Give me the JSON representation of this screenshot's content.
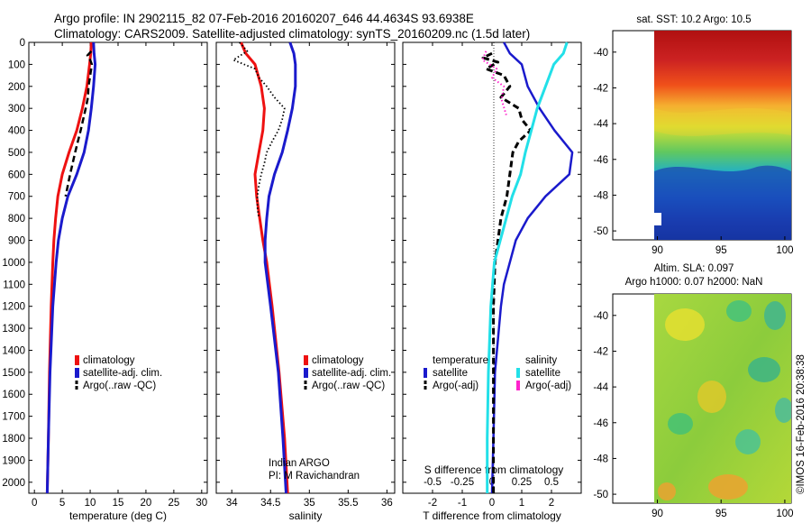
{
  "header": {
    "line1": "Argo profile: IN 2902115_82 07-Feb-2016 20160207_646 44.4634S 93.6938E",
    "line2": "Climatology: CARS2009. Satellite-adjusted climatology: synTS_20160209.nc (1.5d later)"
  },
  "colors": {
    "climatology": "#ee1111",
    "satellite": "#1a1acc",
    "argo": "#000000",
    "salinity_satellite": "#22e0e8",
    "salinity_argo": "#ff22cc"
  },
  "chart_data": [
    {
      "type": "line",
      "name": "temperature",
      "xlabel": "temperature (deg C)",
      "ylabel": "",
      "xlim": [
        -1,
        31
      ],
      "ylim": [
        2050,
        0
      ],
      "xticks": [
        "0",
        "5",
        "10",
        "15",
        "20",
        "25",
        "30"
      ],
      "yticks": [
        "0",
        "100",
        "200",
        "300",
        "400",
        "500",
        "600",
        "700",
        "800",
        "900",
        "1000",
        "1100",
        "1200",
        "1300",
        "1400",
        "1500",
        "1600",
        "1700",
        "1800",
        "1900",
        "2000"
      ],
      "legend": [
        "climatology",
        "satellite-adj. clim.",
        "Argo(..raw -QC)"
      ],
      "series": [
        {
          "name": "climatology",
          "style": "solid",
          "color": "#ee1111",
          "depth": [
            0,
            50,
            100,
            200,
            300,
            400,
            500,
            600,
            700,
            800,
            900,
            1000,
            1200,
            1500,
            1800,
            2050
          ],
          "values": [
            10.2,
            10.1,
            9.9,
            9.4,
            8.6,
            7.6,
            6.2,
            5.0,
            4.2,
            3.8,
            3.5,
            3.3,
            3.0,
            2.7,
            2.5,
            2.3
          ]
        },
        {
          "name": "satellite-adj. clim.",
          "style": "solid",
          "color": "#1a1acc",
          "depth": [
            0,
            50,
            100,
            200,
            300,
            400,
            500,
            600,
            700,
            800,
            900,
            1000,
            1200,
            1500,
            1800,
            2050
          ],
          "values": [
            10.6,
            10.7,
            10.9,
            10.6,
            10.2,
            9.7,
            8.9,
            7.6,
            6.0,
            5.0,
            4.3,
            3.9,
            3.3,
            2.8,
            2.5,
            2.3
          ]
        },
        {
          "name": "Argo(..raw -QC)",
          "style": "dashed",
          "color": "#000000",
          "depth": [
            40,
            60,
            80,
            100,
            150,
            200,
            250,
            300,
            400,
            500,
            600,
            700
          ],
          "values": [
            10.2,
            9.5,
            10.0,
            10.3,
            10.0,
            9.7,
            9.6,
            9.2,
            8.3,
            7.3,
            6.4,
            5.6
          ]
        }
      ]
    },
    {
      "type": "line",
      "name": "salinity",
      "xlabel": "salinity",
      "ylabel": "",
      "xlim": [
        33.8,
        36.1
      ],
      "ylim": [
        2050,
        0
      ],
      "xticks": [
        "34",
        "34.5",
        "35",
        "35.5",
        "36"
      ],
      "legend": [
        "climatology",
        "satellite-adj. clim.",
        "Argo(..raw -QC)"
      ],
      "annotations": [
        "Indian ARGO",
        "PI: M Ravichandran"
      ],
      "series": [
        {
          "name": "climatology",
          "style": "solid",
          "color": "#ee1111",
          "depth": [
            0,
            50,
            100,
            200,
            300,
            400,
            500,
            600,
            700,
            800,
            900,
            1000,
            1200,
            1500,
            1800,
            2050
          ],
          "values": [
            34.12,
            34.18,
            34.3,
            34.38,
            34.42,
            34.4,
            34.35,
            34.3,
            34.32,
            34.36,
            34.4,
            34.45,
            34.52,
            34.61,
            34.68,
            34.72
          ]
        },
        {
          "name": "satellite-adj. clim.",
          "style": "solid",
          "color": "#1a1acc",
          "depth": [
            0,
            50,
            100,
            200,
            300,
            400,
            500,
            600,
            700,
            800,
            900,
            1000,
            1200,
            1500,
            1800,
            2050
          ],
          "values": [
            34.75,
            34.8,
            34.82,
            34.82,
            34.78,
            34.72,
            34.65,
            34.55,
            34.48,
            34.45,
            34.43,
            34.43,
            34.5,
            34.6,
            34.66,
            34.7
          ]
        },
        {
          "name": "Argo(..raw -QC)",
          "style": "dotted",
          "color": "#000000",
          "depth": [
            0,
            40,
            80,
            120,
            160,
            200,
            250,
            300,
            350,
            400,
            450,
            500,
            550,
            600,
            650,
            700,
            750,
            800
          ],
          "values": [
            34.1,
            34.2,
            34.02,
            34.3,
            34.35,
            34.45,
            34.55,
            34.68,
            34.65,
            34.6,
            34.52,
            34.45,
            34.42,
            34.38,
            34.35,
            34.33,
            34.33,
            34.35
          ]
        }
      ]
    },
    {
      "type": "line",
      "name": "difference",
      "xlabel": "T difference from climatology",
      "top_axis_label": "S difference from climatology",
      "xlim": [
        -3,
        3
      ],
      "ylim": [
        2050,
        0
      ],
      "xticks": [
        "-2",
        "-1",
        "0",
        "1",
        "2"
      ],
      "top_xticks": [
        "-0.5",
        "-0.25",
        "0",
        "0.25",
        "0.5"
      ],
      "legend": [
        "temperature",
        "satellite",
        "Argo(-adj)",
        "salinity",
        "satellite",
        "Argo(-adj)"
      ],
      "series": [
        {
          "name": "temperature satellite",
          "style": "solid",
          "color": "#1a1acc",
          "depth": [
            0,
            50,
            100,
            200,
            300,
            400,
            500,
            600,
            700,
            800,
            900,
            1000,
            1100,
            1200,
            1500,
            1800,
            2050
          ],
          "values": [
            0.4,
            0.6,
            1.0,
            1.2,
            1.6,
            2.1,
            2.7,
            2.6,
            1.8,
            1.2,
            0.8,
            0.6,
            0.4,
            0.3,
            0.1,
            0.05,
            0.0
          ]
        },
        {
          "name": "temperature Argo(-adj)",
          "style": "dashed",
          "color": "#000000",
          "depth": [
            50,
            70,
            90,
            120,
            150,
            200,
            250,
            300,
            350,
            400,
            450,
            500,
            600,
            700,
            800,
            900,
            1000,
            1200,
            1500,
            1800,
            2050
          ],
          "values": [
            0.0,
            -0.3,
            0.2,
            -0.2,
            0.4,
            0.6,
            0.3,
            0.9,
            1.0,
            1.3,
            0.9,
            0.7,
            0.6,
            0.5,
            0.3,
            0.2,
            0.1,
            0.05,
            0.05,
            0.05,
            0.05
          ]
        },
        {
          "name": "salinity satellite",
          "style": "solid",
          "color": "#22e0e8",
          "depth": [
            0,
            50,
            100,
            200,
            300,
            400,
            500,
            600,
            700,
            800,
            900,
            1000,
            1200,
            1500,
            1800,
            2050
          ],
          "values": [
            0.63,
            0.6,
            0.52,
            0.45,
            0.38,
            0.33,
            0.28,
            0.24,
            0.17,
            0.12,
            0.07,
            0.02,
            -0.01,
            -0.03,
            -0.04,
            -0.04
          ]
        },
        {
          "name": "salinity Argo(-adj)",
          "style": "dotted",
          "color": "#ff22cc",
          "depth": [
            40,
            80,
            120,
            160,
            200,
            260,
            330
          ],
          "values": [
            -0.05,
            -0.08,
            0.04,
            0.0,
            0.1,
            0.08,
            0.12
          ]
        }
      ]
    },
    {
      "type": "heatmap",
      "name": "sst-map",
      "title": "sat. SST: 10.2 Argo: 10.5",
      "xticks": [
        "90",
        "95",
        "100"
      ],
      "yticks": [
        "-40",
        "-42",
        "-44",
        "-46",
        "-48",
        "-50"
      ],
      "xlim": [
        86.5,
        100.5
      ],
      "ylim": [
        -50.5,
        -38.8
      ]
    },
    {
      "type": "heatmap",
      "name": "sla-map",
      "title": "Altim. SLA: 0.097",
      "subtitle": "Argo h1000: 0.07 h2000: NaN",
      "xticks": [
        "90",
        "95",
        "100"
      ],
      "yticks": [
        "-40",
        "-42",
        "-44",
        "-46",
        "-48",
        "-50"
      ],
      "xlim": [
        86.5,
        100.5
      ],
      "ylim": [
        -50.5,
        -38.8
      ]
    }
  ],
  "footer": {
    "credit": "©IMOS 16-Feb-2016 20:38:38"
  }
}
